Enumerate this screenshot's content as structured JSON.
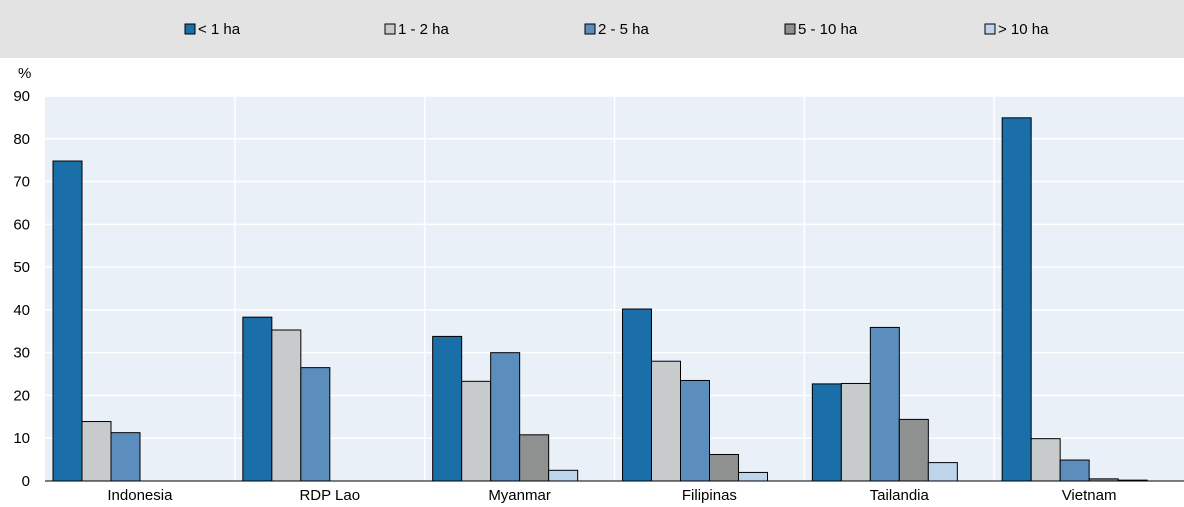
{
  "chart_data": {
    "type": "bar",
    "ylabel": "%",
    "ylim": [
      0,
      90
    ],
    "yticks": [
      0,
      10,
      20,
      30,
      40,
      50,
      60,
      70,
      80,
      90
    ],
    "categories": [
      "Indonesia",
      "RDP Lao",
      "Myanmar",
      "Filipinas",
      "Tailandia",
      "Vietnam"
    ],
    "series": [
      {
        "name": "< 1 ha",
        "color": "#1a6fa8",
        "values": [
          74.8,
          38.3,
          33.8,
          40.2,
          22.7,
          84.9
        ]
      },
      {
        "name": "1 - 2 ha",
        "color": "#c8cbcb",
        "values": [
          13.9,
          35.3,
          23.3,
          28.0,
          22.8,
          9.9
        ]
      },
      {
        "name": "2 - 5 ha",
        "color": "#5b8dbd",
        "values": [
          11.3,
          26.5,
          30.0,
          23.5,
          35.9,
          4.9
        ]
      },
      {
        "name": "5 - 10 ha",
        "color": "#8f9191",
        "values": [
          0,
          0,
          10.8,
          6.2,
          14.4,
          0.5
        ]
      },
      {
        "name": "> 10 ha",
        "color": "#bfd5ec",
        "values": [
          0,
          0,
          2.5,
          2.0,
          4.3,
          0.2
        ]
      }
    ],
    "legend_position": "top",
    "grid": true
  }
}
